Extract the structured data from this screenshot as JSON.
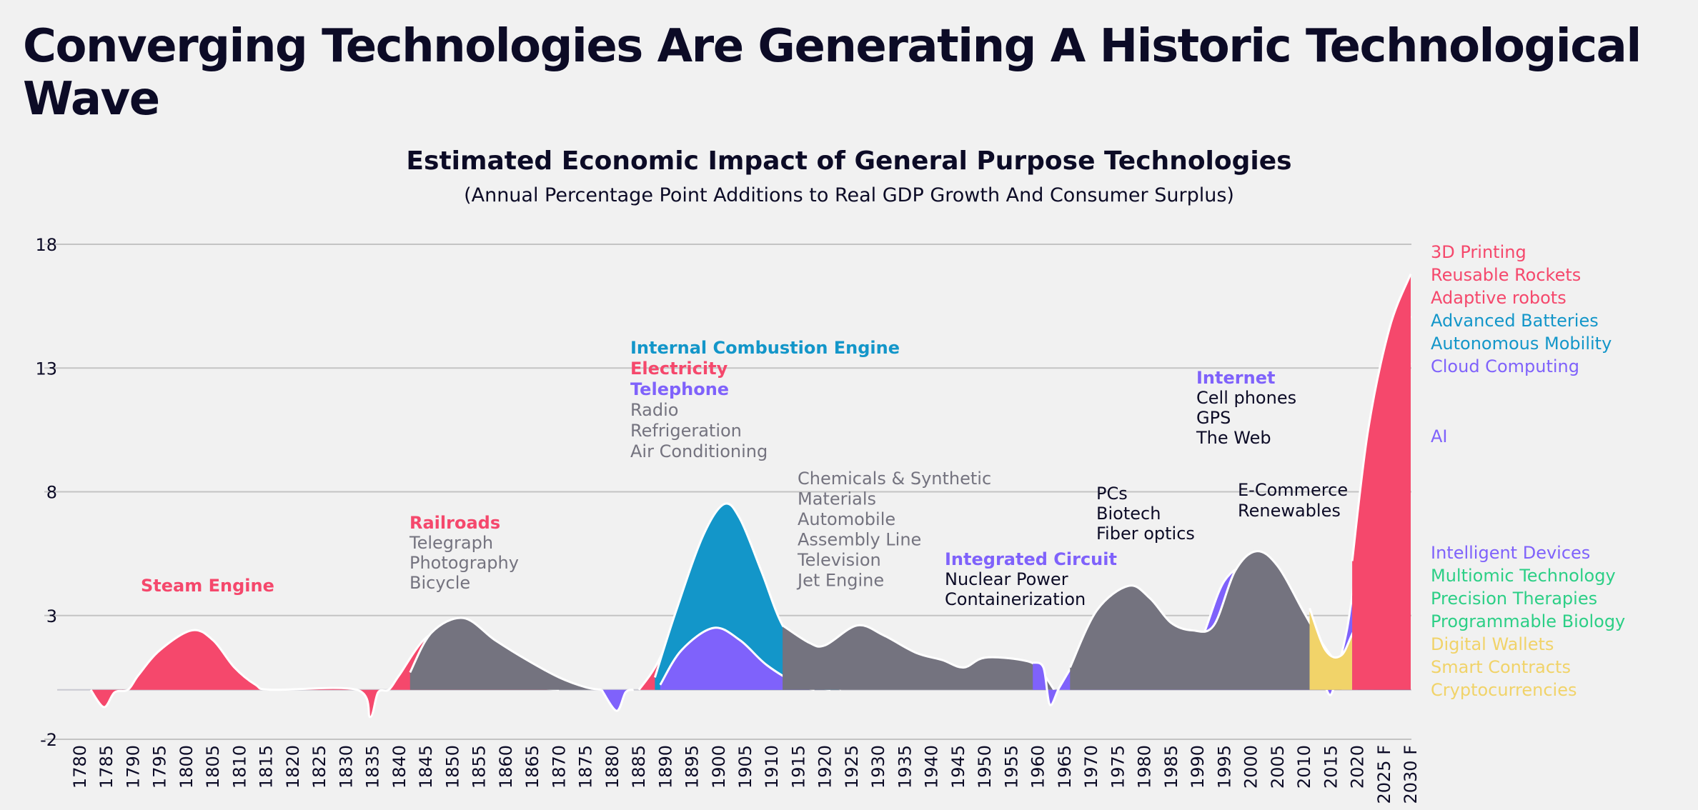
{
  "page": {
    "title": "Converging Technologies Are Generating A Historic Technological Wave"
  },
  "colors": {
    "pink": "#f5486c",
    "blue": "#1396c9",
    "purple": "#7f62fb",
    "gray": "#74737f",
    "yellow": "#f1d369",
    "green": "#2ccf86",
    "dark": "#0c0b26",
    "grid": "#c4c4c4",
    "bg": "#f1f1f1"
  },
  "chart_data": {
    "type": "area",
    "title": "Estimated Economic Impact of General Purpose Technologies",
    "subtitle": "(Annual Percentage Point Additions to Real GDP Growth And Consumer Surplus)",
    "ylim": [
      -2,
      18
    ],
    "yticks": [
      18,
      13,
      8,
      3,
      -2
    ],
    "grid": true,
    "x_ticks": [
      "1780",
      "1785",
      "1790",
      "1795",
      "1800",
      "1805",
      "1810",
      "1815",
      "1820",
      "1825",
      "1830",
      "1835",
      "1840",
      "1845",
      "1850",
      "1855",
      "1860",
      "1865",
      "1870",
      "1875",
      "1880",
      "1885",
      "1890",
      "1895",
      "1900",
      "1905",
      "1910",
      "1915",
      "1920",
      "1925",
      "1930",
      "1935",
      "1940",
      "1945",
      "1950",
      "1955",
      "1960",
      "1965",
      "1970",
      "1975",
      "1980",
      "1985",
      "1990",
      "1995",
      "2000",
      "2005",
      "2010",
      "2015",
      "2020",
      "2025 F",
      "2030 F"
    ],
    "series": [
      {
        "color": "pink",
        "points": [
          [
            1782,
            0
          ],
          [
            1784.5,
            -0.7
          ],
          [
            1786.5,
            -0.1
          ],
          [
            1789,
            0
          ],
          [
            1791,
            0.6
          ],
          [
            1795,
            1.6
          ],
          [
            1801,
            2.4
          ],
          [
            1805,
            2.0
          ],
          [
            1809,
            0.9
          ],
          [
            1813,
            0.2
          ],
          [
            1816,
            0
          ],
          [
            1832,
            0
          ],
          [
            1834.5,
            -1.1
          ],
          [
            1836,
            -0.1
          ],
          [
            1838,
            0
          ],
          [
            1840,
            0.6
          ],
          [
            1845,
            2.1
          ],
          [
            1851,
            2.6
          ],
          [
            1856,
            1.4
          ],
          [
            1861,
            0.4
          ],
          [
            1866,
            0.1
          ],
          [
            1870,
            0
          ]
        ]
      },
      {
        "color": "gray",
        "points": [
          [
            1842,
            0.7
          ],
          [
            1846,
            2.3
          ],
          [
            1852,
            2.9
          ],
          [
            1858,
            2.0
          ],
          [
            1864,
            1.2
          ],
          [
            1870,
            0.5
          ],
          [
            1875,
            0.1
          ],
          [
            1878,
            0
          ]
        ]
      },
      {
        "color": "purple",
        "points": [
          [
            1878,
            0
          ],
          [
            1880.8,
            -0.85
          ],
          [
            1882.5,
            -0.1
          ],
          [
            1884,
            0
          ]
        ]
      },
      {
        "color": "pink",
        "points": [
          [
            1885,
            0
          ],
          [
            1888,
            0.9
          ],
          [
            1892,
            2.6
          ],
          [
            1898,
            4.8
          ],
          [
            1901,
            5.1
          ],
          [
            1906,
            4.0
          ],
          [
            1911,
            1.9
          ],
          [
            1916,
            0.5
          ],
          [
            1919,
            0.1
          ],
          [
            1921,
            0
          ]
        ]
      },
      {
        "color": "blue",
        "points": [
          [
            1888,
            0.5
          ],
          [
            1892,
            3.2
          ],
          [
            1897,
            6.2
          ],
          [
            1901,
            7.5
          ],
          [
            1904,
            6.9
          ],
          [
            1908,
            4.8
          ],
          [
            1912,
            2.6
          ],
          [
            1917,
            1.3
          ],
          [
            1920,
            0.4
          ],
          [
            1923,
            0
          ]
        ]
      },
      {
        "color": "purple",
        "points": [
          [
            1889,
            0.2
          ],
          [
            1893,
            1.6
          ],
          [
            1899,
            2.5
          ],
          [
            1904,
            2.0
          ],
          [
            1909,
            1.0
          ],
          [
            1915,
            0.2
          ],
          [
            1918,
            0
          ]
        ]
      },
      {
        "color": "gray",
        "points": [
          [
            1912,
            2.6
          ],
          [
            1917,
            1.9
          ],
          [
            1920,
            1.8
          ],
          [
            1926,
            2.6
          ],
          [
            1931,
            2.2
          ],
          [
            1937,
            1.5
          ],
          [
            1942,
            1.2
          ],
          [
            1946,
            0.9
          ],
          [
            1950,
            1.3
          ],
          [
            1957,
            1.2
          ],
          [
            1960,
            0.9
          ],
          [
            1963,
            0
          ]
        ]
      },
      {
        "color": "purple",
        "points": [
          [
            1959,
            1.1
          ],
          [
            1961,
            0.9
          ],
          [
            1962.2,
            -0.6
          ],
          [
            1964,
            0.1
          ],
          [
            1967,
            1.2
          ],
          [
            1972,
            3.0
          ],
          [
            1977,
            3.9
          ],
          [
            1981,
            3.0
          ],
          [
            1985,
            2.4
          ],
          [
            1989,
            1.6
          ],
          [
            1991,
            2.2
          ],
          [
            1995,
            4.4
          ],
          [
            2000,
            5.1
          ],
          [
            2004,
            4.6
          ],
          [
            2009,
            2.6
          ],
          [
            2012,
            1.2
          ],
          [
            2013.5,
            0.4
          ],
          [
            2015,
            -0.2
          ],
          [
            2016.5,
            1.0
          ],
          [
            2018,
            2.4
          ],
          [
            2019,
            3.8
          ]
        ]
      },
      {
        "color": "gray",
        "points": [
          [
            1966,
            0.9
          ],
          [
            1971,
            3.2
          ],
          [
            1977,
            4.2
          ],
          [
            1981,
            3.7
          ],
          [
            1985,
            2.7
          ],
          [
            1989,
            2.4
          ],
          [
            1993,
            2.6
          ],
          [
            1997,
            4.8
          ],
          [
            2001,
            5.6
          ],
          [
            2005,
            5.0
          ],
          [
            2010,
            3.1
          ],
          [
            2013,
            2.0
          ],
          [
            2017,
            0.8
          ]
        ]
      },
      {
        "color": "yellow",
        "points": [
          [
            2011,
            3.3
          ],
          [
            2014,
            1.6
          ],
          [
            2017,
            1.4
          ],
          [
            2020,
            2.6
          ],
          [
            2025,
            3.4
          ],
          [
            2030,
            3.6
          ]
        ]
      },
      {
        "color": "green",
        "points": [
          [
            2023,
            3.6
          ],
          [
            2026,
            3.9
          ],
          [
            2030,
            4.0
          ]
        ]
      },
      {
        "color": "purple",
        "points": [
          [
            2019,
            3.8
          ],
          [
            2021,
            7.0
          ],
          [
            2024,
            10.5
          ],
          [
            2027,
            12.4
          ],
          [
            2030,
            13.2
          ]
        ]
      },
      {
        "color": "blue",
        "points": [
          [
            2020,
            4.8
          ],
          [
            2023,
            9.6
          ],
          [
            2026,
            12.9
          ],
          [
            2030,
            15.1
          ]
        ]
      },
      {
        "color": "pink",
        "points": [
          [
            2019,
            5.2
          ],
          [
            2022,
            10.5
          ],
          [
            2026,
            14.6
          ],
          [
            2030,
            16.8
          ]
        ]
      }
    ],
    "annotations": [
      {
        "lines": [
          {
            "text": "Steam Engine",
            "color": "pink",
            "bold": true
          }
        ]
      },
      {
        "lines": [
          {
            "text": "Railroads",
            "color": "pink",
            "bold": true
          },
          {
            "text": "Telegraph",
            "color": "gray",
            "bold": false
          },
          {
            "text": "Photography",
            "color": "gray",
            "bold": false
          },
          {
            "text": "Bicycle",
            "color": "gray",
            "bold": false
          }
        ]
      },
      {
        "lines": [
          {
            "text": "Internal Combustion Engine",
            "color": "blue",
            "bold": true
          },
          {
            "text": "Electricity",
            "color": "pink",
            "bold": true
          },
          {
            "text": "Telephone",
            "color": "purple",
            "bold": true
          },
          {
            "text": "Radio",
            "color": "gray",
            "bold": false
          },
          {
            "text": "Refrigeration",
            "color": "gray",
            "bold": false
          },
          {
            "text": "Air Conditioning",
            "color": "gray",
            "bold": false
          }
        ]
      },
      {
        "lines": [
          {
            "text": "Chemicals & Synthetic",
            "color": "gray",
            "bold": false
          },
          {
            "text": "Materials",
            "color": "gray",
            "bold": false
          },
          {
            "text": "Automobile",
            "color": "gray",
            "bold": false
          },
          {
            "text": "Assembly Line",
            "color": "gray",
            "bold": false
          },
          {
            "text": "Television",
            "color": "gray",
            "bold": false
          },
          {
            "text": "Jet Engine",
            "color": "gray",
            "bold": false
          }
        ]
      },
      {
        "lines": [
          {
            "text": "Integrated Circuit",
            "color": "purple",
            "bold": true
          },
          {
            "text": "Nuclear Power",
            "color": "dark",
            "bold": false
          },
          {
            "text": "Containerization",
            "color": "dark",
            "bold": false
          }
        ]
      },
      {
        "lines": [
          {
            "text": "PCs",
            "color": "dark",
            "bold": false
          },
          {
            "text": "Biotech",
            "color": "dark",
            "bold": false
          },
          {
            "text": "Fiber optics",
            "color": "dark",
            "bold": false
          }
        ]
      },
      {
        "lines": [
          {
            "text": "Internet",
            "color": "purple",
            "bold": true
          },
          {
            "text": "Cell phones",
            "color": "dark",
            "bold": false
          },
          {
            "text": "GPS",
            "color": "dark",
            "bold": false
          },
          {
            "text": "The Web",
            "color": "dark",
            "bold": false
          }
        ]
      },
      {
        "lines": [
          {
            "text": "E-Commerce",
            "color": "dark",
            "bold": false
          },
          {
            "text": "Renewables",
            "color": "dark",
            "bold": false
          }
        ]
      }
    ],
    "legend": [
      {
        "text": "3D Printing",
        "color": "pink"
      },
      {
        "text": "Reusable Rockets",
        "color": "pink"
      },
      {
        "text": "Adaptive robots",
        "color": "pink"
      },
      {
        "text": "Advanced Batteries",
        "color": "blue"
      },
      {
        "text": "Autonomous Mobility",
        "color": "blue"
      },
      {
        "text": "Cloud Computing",
        "color": "purple"
      },
      {
        "text": "AI",
        "color": "purple"
      },
      {
        "text": "Intelligent Devices",
        "color": "purple"
      },
      {
        "text": "Multiomic Technology",
        "color": "green"
      },
      {
        "text": "Precision Therapies",
        "color": "green"
      },
      {
        "text": "Programmable Biology",
        "color": "green"
      },
      {
        "text": "Digital Wallets",
        "color": "yellow"
      },
      {
        "text": "Smart Contracts",
        "color": "yellow"
      },
      {
        "text": "Cryptocurrencies",
        "color": "yellow"
      }
    ]
  }
}
